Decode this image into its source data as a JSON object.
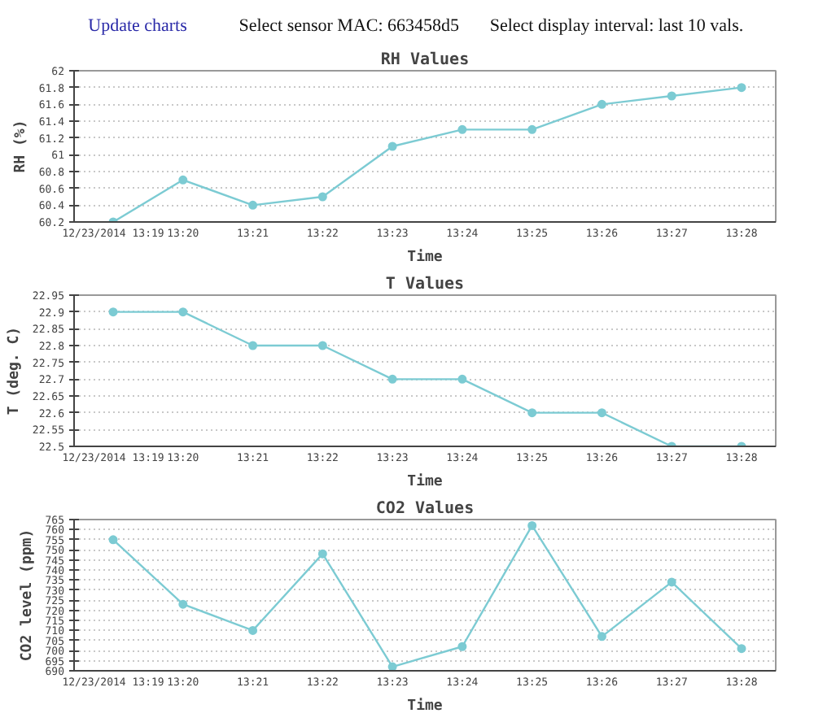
{
  "chart_data": [
    {
      "type": "line",
      "title": "RH Values",
      "xlabel": "Time",
      "ylabel": "RH (%)",
      "annotations": [
        "Update charts",
        "Select sensor MAC: 663458d5",
        "Select display interval: last 10 vals."
      ],
      "categories": [
        "12/23/2014 13:19",
        "13:20",
        "13:21",
        "13:22",
        "13:23",
        "13:24",
        "13:25",
        "13:26",
        "13:27",
        "13:28"
      ],
      "values": [
        60.2,
        60.7,
        60.4,
        60.5,
        61.1,
        61.3,
        61.3,
        61.6,
        61.7,
        61.8
      ],
      "color": "#7ccbd3",
      "ylim": [
        60.2,
        62
      ],
      "yticks": [
        60.2,
        60.4,
        60.6,
        60.8,
        61,
        61.2,
        61.4,
        61.6,
        61.8,
        62
      ],
      "grid": "y",
      "marker": "circle",
      "line_style": "solid"
    },
    {
      "type": "line",
      "title": "T Values",
      "xlabel": "Time",
      "ylabel": "T (deg. C)",
      "categories": [
        "12/23/2014 13:19",
        "13:20",
        "13:21",
        "13:22",
        "13:23",
        "13:24",
        "13:25",
        "13:26",
        "13:27",
        "13:28"
      ],
      "values": [
        22.9,
        22.9,
        22.8,
        22.8,
        22.7,
        22.7,
        22.6,
        22.6,
        22.5,
        22.5
      ],
      "color": "#7ccbd3",
      "ylim": [
        22.5,
        22.95
      ],
      "yticks": [
        22.5,
        22.55,
        22.6,
        22.65,
        22.7,
        22.75,
        22.8,
        22.85,
        22.9,
        22.95
      ],
      "grid": "y",
      "marker": "circle",
      "line_style": "solid"
    },
    {
      "type": "line",
      "title": "CO2 Values",
      "xlabel": "Time",
      "ylabel": "CO2 level (ppm)",
      "categories": [
        "12/23/2014 13:19",
        "13:20",
        "13:21",
        "13:22",
        "13:23",
        "13:24",
        "13:25",
        "13:26",
        "13:27",
        "13:28"
      ],
      "values": [
        755,
        723,
        710,
        748,
        692,
        702,
        762,
        707,
        734,
        701
      ],
      "color": "#7ccbd3",
      "ylim": [
        690,
        765
      ],
      "yticks": [
        690,
        695,
        700,
        705,
        710,
        715,
        720,
        725,
        730,
        735,
        740,
        745,
        750,
        755,
        760,
        765
      ],
      "grid": "y",
      "marker": "circle",
      "line_style": "solid"
    }
  ]
}
